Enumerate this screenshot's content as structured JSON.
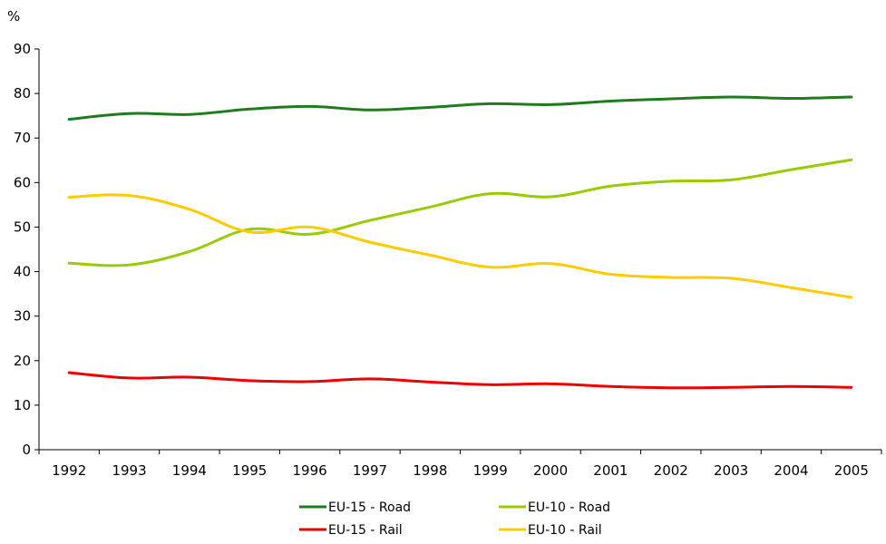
{
  "chart_data": {
    "type": "line",
    "ylabel": "%",
    "ylim": [
      0,
      90
    ],
    "yticks": [
      0,
      10,
      20,
      30,
      40,
      50,
      60,
      70,
      80,
      90
    ],
    "categories": [
      "1992",
      "1993",
      "1994",
      "1995",
      "1996",
      "1997",
      "1998",
      "1999",
      "2000",
      "2001",
      "2002",
      "2003",
      "2004",
      "2005"
    ],
    "grid": false,
    "legend_position": "bottom",
    "series": [
      {
        "name": "EU-15 - Road",
        "color": "#1e7b1e",
        "values": [
          74.2,
          75.5,
          75.3,
          76.5,
          77.1,
          76.3,
          76.9,
          77.7,
          77.5,
          78.3,
          78.8,
          79.2,
          78.9,
          79.2
        ]
      },
      {
        "name": "EU-10 - Road",
        "color": "#99cc00",
        "values": [
          41.9,
          41.5,
          44.5,
          49.5,
          48.4,
          51.5,
          54.5,
          57.5,
          56.8,
          59.2,
          60.3,
          60.6,
          62.9,
          65.1
        ]
      },
      {
        "name": "EU-15 - Rail",
        "color": "#ee0000",
        "values": [
          17.3,
          16.1,
          16.3,
          15.5,
          15.3,
          15.9,
          15.2,
          14.6,
          14.8,
          14.2,
          13.9,
          14.0,
          14.2,
          14.0
        ]
      },
      {
        "name": "EU-10 - Rail",
        "color": "#ffcc00",
        "values": [
          56.7,
          57.1,
          54.0,
          48.9,
          50.0,
          46.6,
          43.7,
          41.0,
          41.8,
          39.4,
          38.7,
          38.5,
          36.4,
          34.2
        ]
      }
    ]
  }
}
